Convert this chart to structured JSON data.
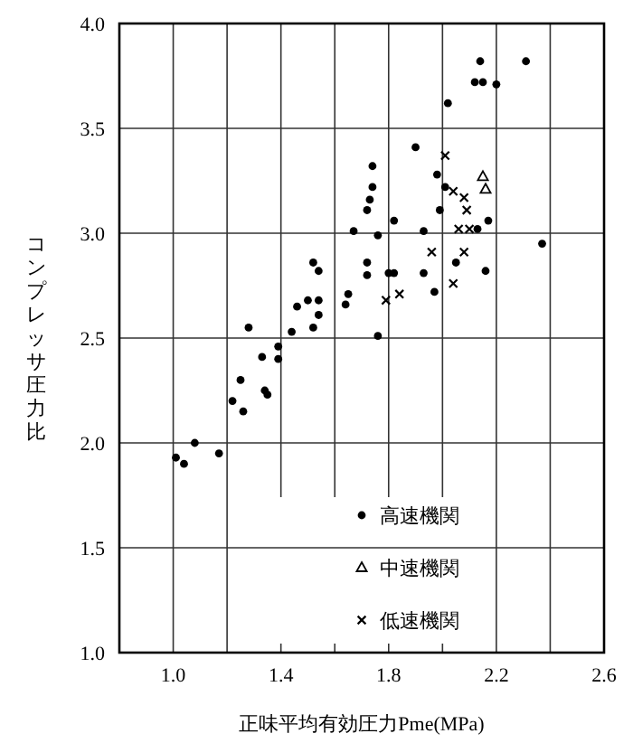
{
  "chart_data": {
    "type": "scatter",
    "xlabel": "正味平均有効圧力Pme(MPa)",
    "ylabel": "コンプレッサ圧力比",
    "xlim": [
      0.8,
      2.6
    ],
    "ylim": [
      1.0,
      4.0
    ],
    "xticks": [
      {
        "value": 1,
        "label": "1.0"
      },
      {
        "value": 1.2,
        "label": null
      },
      1.4,
      {
        "value": 1.6,
        "label": null
      },
      1.8,
      {
        "value": 2,
        "label": null
      },
      2.2,
      {
        "value": 2.4,
        "label": null
      },
      2.6
    ],
    "yticks": [
      {
        "value": 1,
        "label": "1.0"
      },
      1.5,
      {
        "value": 2,
        "label": "2.0"
      },
      2.5,
      {
        "value": 3,
        "label": "3.0"
      },
      3.5,
      {
        "value": 4,
        "label": "4.0"
      }
    ],
    "grid": true,
    "legend": "bottom right",
    "series": [
      {
        "name": "高速機関",
        "color": "#000000",
        "marker": "circle",
        "x": [
          2.14,
          2.31,
          2.12,
          2.15,
          2.2,
          2.02,
          1.9,
          1.74,
          1.98,
          1.74,
          2.01,
          1.73,
          1.72,
          1.99,
          2.17,
          1.82,
          1.67,
          1.93,
          2.13,
          1.76,
          2.37,
          1.52,
          1.72,
          2.05,
          1.54,
          1.72,
          1.8,
          1.82,
          1.93,
          2.16,
          1.97,
          1.65,
          1.64,
          1.5,
          1.54,
          1.46,
          1.54,
          1.28,
          1.52,
          1.44,
          1.76,
          1.39,
          1.33,
          1.39,
          1.25,
          1.34,
          1.35,
          1.22,
          1.26,
          1.08,
          1.01,
          1.04,
          1.17
        ],
        "values": [
          3.82,
          3.82,
          3.72,
          3.72,
          3.71,
          3.62,
          3.41,
          3.32,
          3.28,
          3.22,
          3.22,
          3.16,
          3.11,
          3.11,
          3.06,
          3.06,
          3.01,
          3.01,
          3.02,
          2.99,
          2.95,
          2.86,
          2.86,
          2.86,
          2.82,
          2.8,
          2.81,
          2.81,
          2.81,
          2.82,
          2.72,
          2.71,
          2.66,
          2.68,
          2.68,
          2.65,
          2.61,
          2.55,
          2.55,
          2.53,
          2.51,
          2.46,
          2.41,
          2.4,
          2.3,
          2.25,
          2.23,
          2.2,
          2.15,
          2.0,
          1.93,
          1.9,
          1.95
        ]
      },
      {
        "name": "中速機関",
        "color": "#000000",
        "marker": "triangle",
        "x": [
          2.15,
          2.16
        ],
        "values": [
          3.27,
          3.21
        ]
      },
      {
        "name": "低速機関",
        "color": "#000000",
        "marker": "cross",
        "x": [
          2.01,
          2.04,
          2.08,
          2.09,
          2.06,
          2.1,
          1.96,
          2.08,
          2.04,
          1.79,
          1.84
        ],
        "values": [
          3.37,
          3.2,
          3.17,
          3.11,
          3.02,
          3.02,
          2.91,
          2.91,
          2.76,
          2.68,
          2.71
        ]
      }
    ]
  }
}
